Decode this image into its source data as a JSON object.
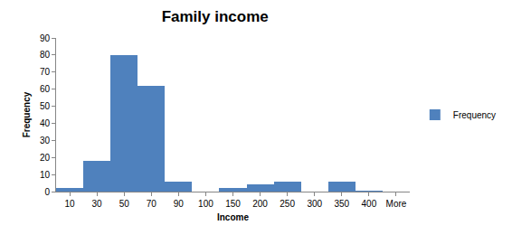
{
  "chart_data": {
    "type": "bar",
    "title": "Family income",
    "x_label": "Income",
    "y_label": "Frequency",
    "categories": [
      "10",
      "30",
      "50",
      "70",
      "90",
      "100",
      "150",
      "200",
      "250",
      "300",
      "350",
      "400",
      "More"
    ],
    "series": [
      {
        "name": "Frequency",
        "color": "#4f81bd",
        "values": [
          2,
          18,
          80,
          62,
          6,
          0,
          2,
          4,
          6,
          0,
          6,
          0.5,
          0
        ]
      }
    ],
    "ylim": [
      0,
      90
    ],
    "yticks": [
      0,
      10,
      20,
      30,
      40,
      50,
      60,
      70,
      80,
      90
    ],
    "grid": false,
    "legend": "right"
  }
}
